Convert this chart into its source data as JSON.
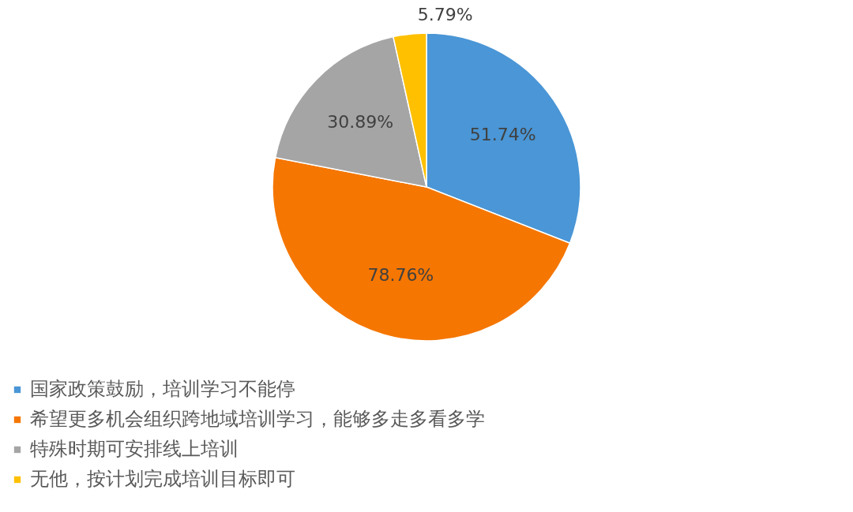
{
  "chart_data": {
    "type": "pie",
    "categories": [
      "国家政策鼓励，培训学习不能停",
      "希望更多机会组织跨地域培训学习，能够多走多看多学",
      "特殊时期可安排线上培训",
      "无他，按计划完成培训目标即可"
    ],
    "values": [
      51.74,
      78.76,
      30.89,
      5.79
    ],
    "colors": [
      "#4a96d6",
      "#f57600",
      "#a5a5a5",
      "#ffc000"
    ],
    "value_labels": [
      "51.74%",
      "78.76%",
      "30.89%",
      "5.79%"
    ],
    "legend": "bottom"
  }
}
